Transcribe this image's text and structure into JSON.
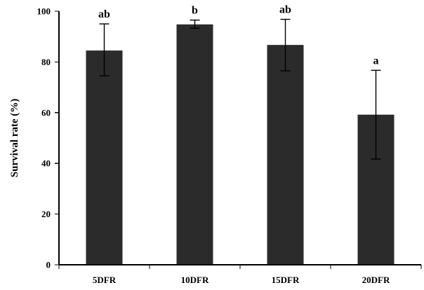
{
  "chart_data": {
    "type": "bar",
    "categories": [
      "5DFR",
      "10DFR",
      "15DFR",
      "20DFR"
    ],
    "values": [
      84.5,
      94.8,
      86.7,
      59.2
    ],
    "error_bars": [
      {
        "low": 74.5,
        "high": 95.0
      },
      {
        "low": 93.3,
        "high": 96.5
      },
      {
        "low": 76.5,
        "high": 96.8
      },
      {
        "low": 41.7,
        "high": 76.7
      }
    ],
    "significance_labels": [
      "ab",
      "b",
      "ab",
      "a"
    ],
    "title": "",
    "xlabel": "",
    "ylabel": "Survival rate (%)",
    "ylim": [
      0,
      100
    ],
    "yticks": [
      0,
      20,
      40,
      60,
      80,
      100
    ],
    "grid": false,
    "legend": "none",
    "colors": {
      "bar": "#2b2b2b",
      "axis": "#000000",
      "background": "#ffffff"
    }
  }
}
